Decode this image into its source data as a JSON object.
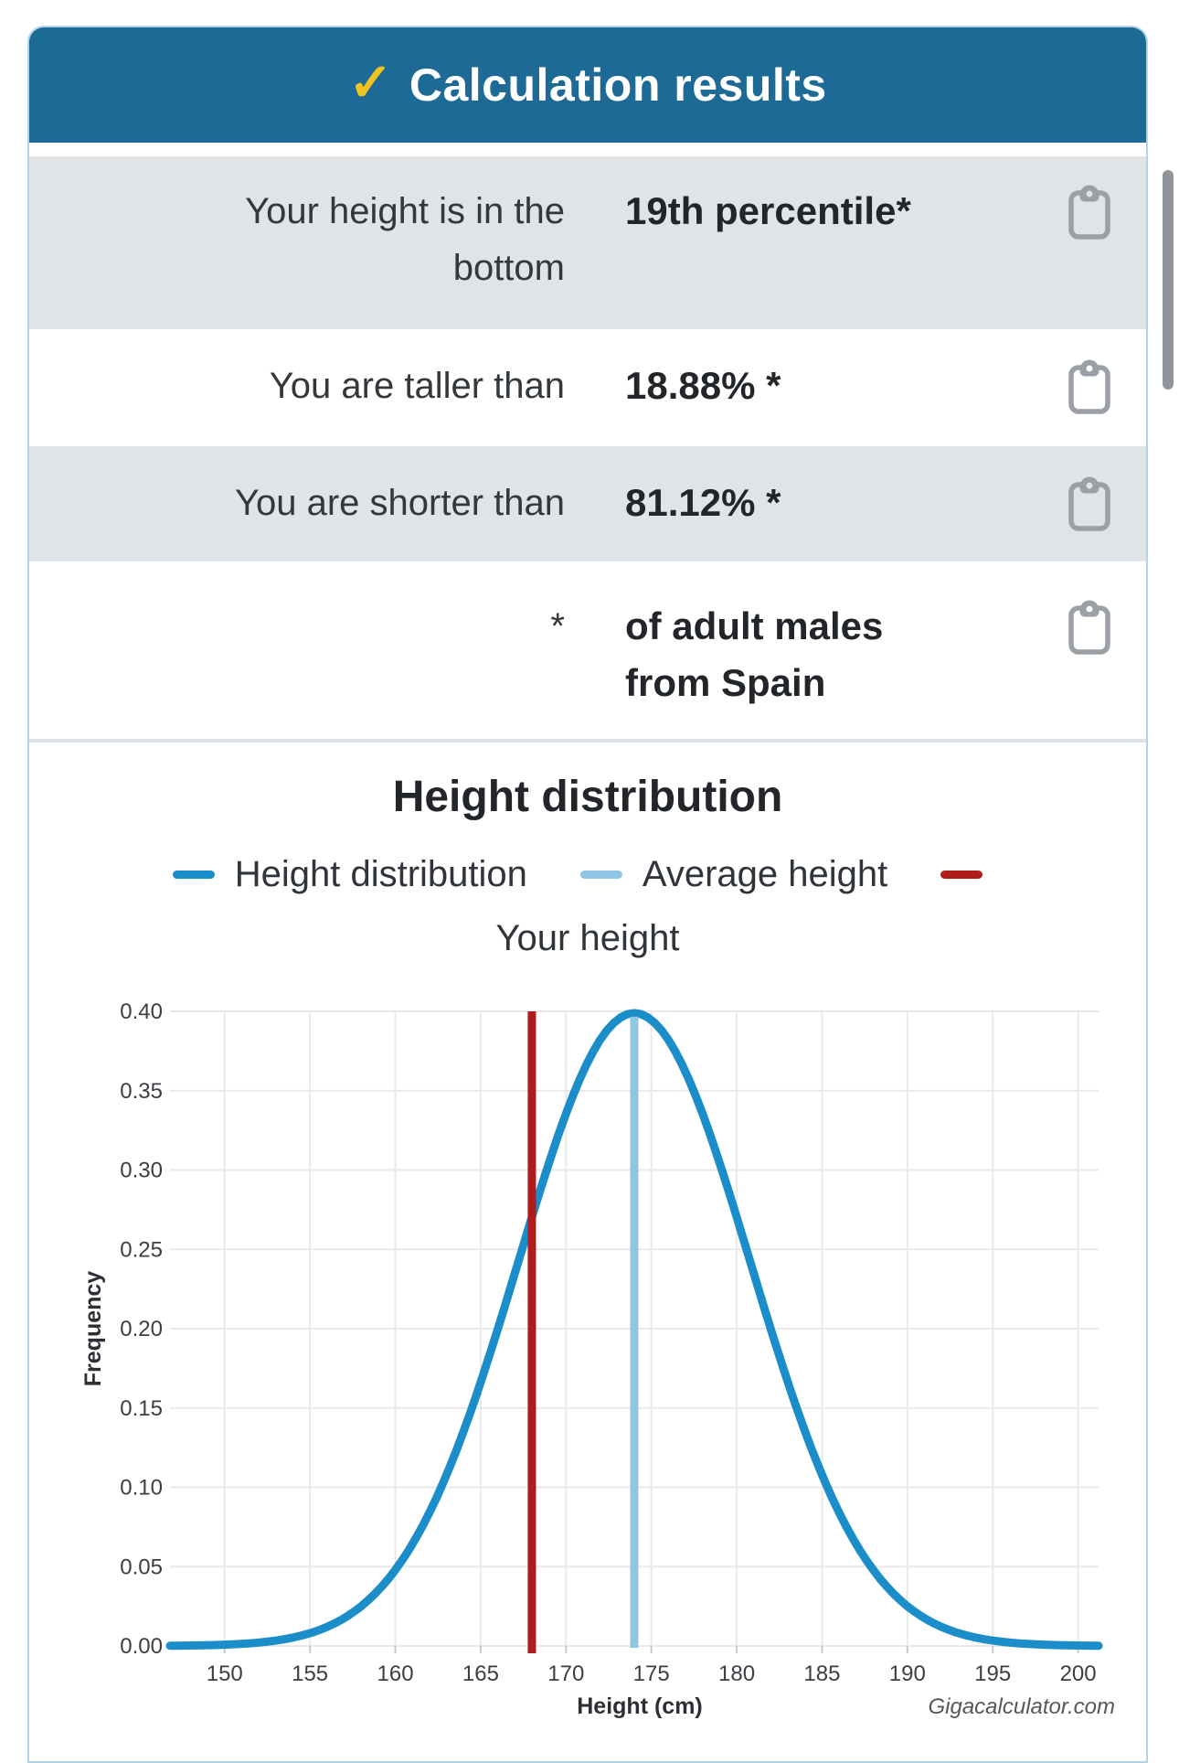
{
  "header": {
    "title": "Calculation results",
    "check_icon": "✓",
    "check_color": "#f0c420",
    "bg_color": "#1e6a96"
  },
  "results": {
    "rows": [
      {
        "label": "Your height is in the bottom",
        "value": "19th percentile*"
      },
      {
        "label": "You are taller than",
        "value": "18.88% *"
      },
      {
        "label": "You are shorter than",
        "value": "81.12% *"
      },
      {
        "label": "*",
        "value": "of adult males from Spain"
      }
    ],
    "copy_icon": "clipboard-icon"
  },
  "section_title": "Height distribution",
  "legend": {
    "items": [
      {
        "label": "Height distribution",
        "color": "#1b8ec9"
      },
      {
        "label": "Average height",
        "color": "#8fc6e6"
      },
      {
        "label": "Your height",
        "color": "#b01b1b"
      }
    ]
  },
  "chart_data": {
    "type": "line",
    "title": "Height distribution",
    "xlabel": "Height (cm)",
    "ylabel": "Frequency",
    "watermark": "Gigacalculator.com",
    "x_ticks": [
      150,
      155,
      160,
      165,
      170,
      175,
      180,
      185,
      190,
      195,
      200
    ],
    "y_ticks": [
      0,
      0.05,
      0.1,
      0.15,
      0.2,
      0.25,
      0.3,
      0.35,
      0.4
    ],
    "xlim": [
      146.8,
      201.2
    ],
    "ylim": [
      0,
      0.4
    ],
    "grid": true,
    "legend_position": "top",
    "series": [
      {
        "name": "Height distribution",
        "kind": "gaussian_curve",
        "mean": 174,
        "sd": 6.8,
        "peak_value": 0.3989,
        "color": "#1b8ec9"
      },
      {
        "name": "Average height",
        "kind": "vline",
        "x": 174,
        "top": "curve_peak",
        "color": "#8fc6e6"
      },
      {
        "name": "Your height",
        "kind": "vline",
        "x": 168,
        "top": "plot_top",
        "color": "#b01b1b"
      }
    ],
    "grid_color": "#e9e9e9",
    "tick_color": "#c6cacd"
  },
  "scrollbar_color": "#8f959a"
}
